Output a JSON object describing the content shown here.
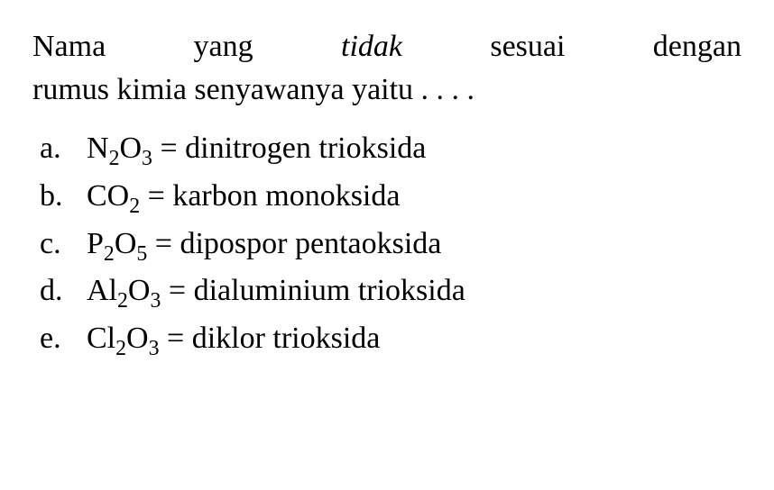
{
  "question": {
    "line1_words": [
      "Nama",
      "yang",
      "tidak",
      "sesuai",
      "dengan"
    ],
    "line1_italic_index": 2,
    "line2": "rumus kimia senyawanya yaitu . . . ."
  },
  "options": [
    {
      "letter": "a.",
      "formula_parts": [
        {
          "t": "N",
          "sub": false
        },
        {
          "t": "2",
          "sub": true
        },
        {
          "t": "O",
          "sub": false
        },
        {
          "t": "3",
          "sub": true
        }
      ],
      "name": "dinitrogen trioksida"
    },
    {
      "letter": "b.",
      "formula_parts": [
        {
          "t": "CO",
          "sub": false
        },
        {
          "t": "2",
          "sub": true
        }
      ],
      "name": "karbon monoksida"
    },
    {
      "letter": "c.",
      "formula_parts": [
        {
          "t": "P",
          "sub": false
        },
        {
          "t": "2",
          "sub": true
        },
        {
          "t": "O",
          "sub": false
        },
        {
          "t": "5",
          "sub": true
        }
      ],
      "name": "dipospor pentaoksida"
    },
    {
      "letter": "d.",
      "formula_parts": [
        {
          "t": "Al",
          "sub": false
        },
        {
          "t": "2",
          "sub": true
        },
        {
          "t": "O",
          "sub": false
        },
        {
          "t": "3",
          "sub": true
        }
      ],
      "name": "dialuminium trioksida"
    },
    {
      "letter": "e.",
      "formula_parts": [
        {
          "t": "Cl",
          "sub": false
        },
        {
          "t": "2",
          "sub": true
        },
        {
          "t": "O",
          "sub": false
        },
        {
          "t": "3",
          "sub": true
        }
      ],
      "name": "diklor trioksida"
    }
  ],
  "styling": {
    "background_color": "#ffffff",
    "text_color": "#000000",
    "font_family": "Georgia, Times New Roman, serif",
    "question_fontsize": 34,
    "option_fontsize": 34,
    "equals_separator": " = "
  }
}
